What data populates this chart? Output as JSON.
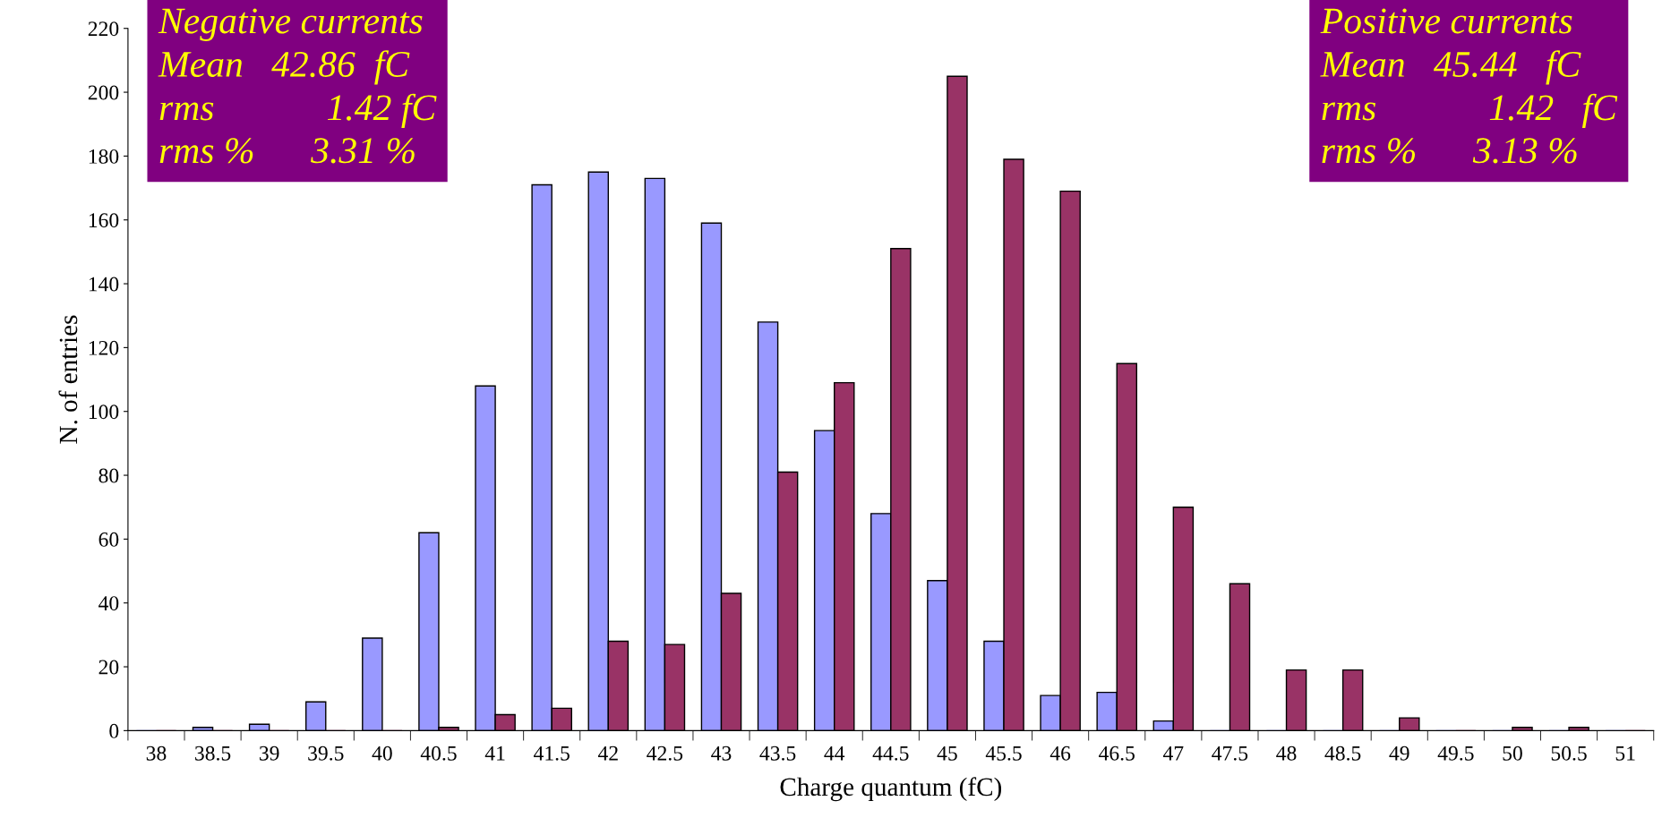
{
  "chart_data": {
    "type": "bar",
    "xlabel": "Charge quantum (fC)",
    "ylabel": "N. of entries",
    "categories": [
      "38",
      "38.5",
      "39",
      "39.5",
      "40",
      "40.5",
      "41",
      "41.5",
      "42",
      "42.5",
      "43",
      "43.5",
      "44",
      "44.5",
      "45",
      "45.5",
      "46",
      "46.5",
      "47",
      "47.5",
      "48",
      "48.5",
      "49",
      "49.5",
      "50",
      "50.5",
      "51"
    ],
    "series": [
      {
        "color": "#9999ff",
        "values": [
          0,
          1,
          2,
          9,
          29,
          62,
          108,
          171,
          175,
          173,
          159,
          128,
          94,
          68,
          47,
          28,
          11,
          12,
          3,
          0,
          0,
          0,
          0,
          0,
          0,
          0,
          0
        ]
      },
      {
        "color": "#993366",
        "values": [
          0,
          0,
          0,
          0,
          0,
          1,
          5,
          7,
          28,
          27,
          43,
          81,
          109,
          151,
          205,
          179,
          169,
          115,
          70,
          46,
          19,
          19,
          4,
          0,
          1,
          1,
          0
        ]
      }
    ],
    "ylim": [
      0,
      220
    ],
    "yticks": [
      0,
      20,
      40,
      60,
      80,
      100,
      120,
      140,
      160,
      180,
      200,
      220
    ],
    "grid": false,
    "legend": false,
    "annotations": [
      "Negative currents\nMean   42.86  fC\nrms            1.42 fC\nrms %      3.31 %",
      "Positive currents\nMean   45.44   fC\nrms            1.42   fC\nrms %      3.13 %"
    ]
  }
}
